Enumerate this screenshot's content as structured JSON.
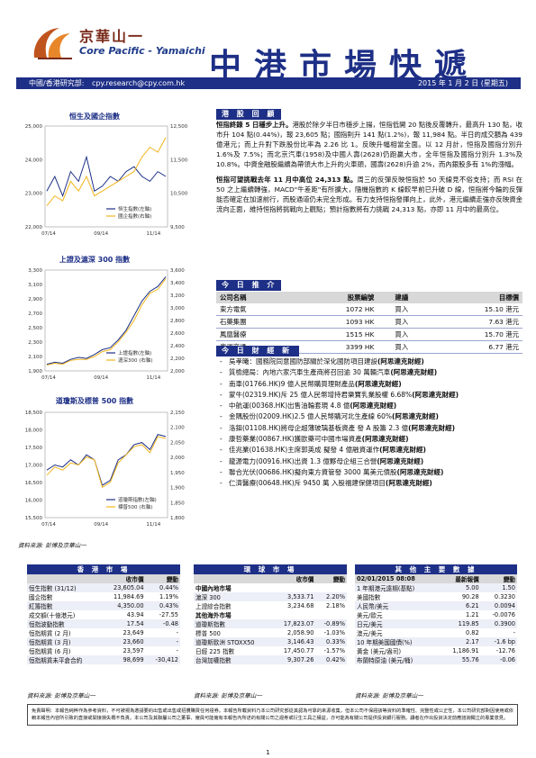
{
  "header": {
    "brand_cn": "京華山一",
    "brand_en": "Core Pacific - Yamaichi",
    "title": "中港市場快遞",
    "dept": "中國/香港研究部:",
    "email": "cpy.research@cpy.com.hk",
    "date": "2015 年 1 月 2 日 (星期五)"
  },
  "charts": [
    {
      "title": "恒生及國企指數",
      "left_ticks": [
        "25,000",
        "24,000",
        "23,000",
        "22,000"
      ],
      "right_ticks": [
        "12,500",
        "11,500",
        "10,500",
        "9,500"
      ],
      "x_ticks": [
        "07/14",
        "09/14",
        "11/14"
      ],
      "legend": [
        "恒生指數(左軸)",
        "國企指數(右軸)"
      ],
      "series_colors": [
        "#1d2f86",
        "#f2b51b"
      ]
    },
    {
      "title": "上證及滬深 300 指數",
      "left_ticks": [
        "3,300",
        "3,100",
        "2,900",
        "2,700",
        "2,500",
        "2,300",
        "2,100",
        "1,900"
      ],
      "right_ticks": [
        "3,600",
        "3,400",
        "3,200",
        "3,000",
        "2,800",
        "2,600",
        "2,400",
        "2,200",
        "2,000"
      ],
      "x_ticks": [
        "07/14",
        "09/14",
        "11/14"
      ],
      "legend": [
        "上證指數(左軸)",
        "滬深300 (右軸)"
      ],
      "series_colors": [
        "#1d2f86",
        "#f2b51b"
      ]
    },
    {
      "title": "道瓊斯及標普 500 指數",
      "left_ticks": [
        "18,500",
        "18,000",
        "17,500",
        "17,000",
        "16,500",
        "16,000",
        "15,500"
      ],
      "right_ticks": [
        "2,150",
        "2,100",
        "2,050",
        "2,000",
        "1,950",
        "1,900",
        "1,850",
        "1,800"
      ],
      "x_ticks": [
        "07/14",
        "09/14",
        "11/14"
      ],
      "legend": [
        "道瓊斯指數(左軸)",
        "標普500 (右軸)"
      ],
      "series_colors": [
        "#1d2f86",
        "#f2b51b"
      ]
    }
  ],
  "chart_source": "資料來源: 彭博及京華山一",
  "news": {
    "heading": "港 股 回 顧",
    "p1_bold": "恒指終錄 5 日穩步上升。",
    "p1_text": "港股於除夕半日市穩步上揚，恒指低開 20 點後反覆轉升，最高升 130 點，收市升 104 點(0.44%)，報 23,605 點；國指則升 141 點(1.2%)，報 11,984 點。半日的成交額為 439 億港元；而上升對下跌股份比率為 2.26 比 1。反映升幅相當全面。以 12 月計，恒指及國指分別升 1.6%及 7.5%；而北京汽車(1958)及中國人壽(2628)仍跑贏大市，全年恒指及國指分別升 1.3%及 10.8%。中資金融股繼續為帶領大市上升的火車頭，國壽(2628)升逾 2%，而內銀股多有 1%的漲幅。",
    "p2_bold": "恒指可望挑戰去年 11 月中高位 24,313 點。",
    "p2_text": "周三的反彈反映恒指於 50 天線見不俗支持；而 RSI 在 50 之上繼續轉強，MACD\"牛差距\"有所擴大，隨機指數的 K 線較早前已升破 D 線，恒指將今輪的反彈能否確定在加速前行，而股通道仍未完全形成。有力支持恒指發揮向上，此外，港元繼續走強亦反映資金流向正面，維持恒指將挑戰向上觀點；預計指數將有力挑戰 24,313 點，亦即 11 月中的最高位。"
  },
  "recommend": {
    "heading": "今 日 推 介",
    "columns": [
      "公司名稱",
      "股票編號",
      "建議",
      "目標價"
    ],
    "rows": [
      [
        "東方電氣",
        "1072 HK",
        "買入",
        "15.10 港元"
      ],
      [
        "石藥集團",
        "1093 HK",
        "買入",
        "7.63 港元"
      ],
      [
        "鳳凰醫療",
        "1515 HK",
        "買入",
        "15.70 港元"
      ],
      [
        "粵運交通",
        "3399 HK",
        "買入",
        "6.77 港元"
      ]
    ]
  },
  "finance": {
    "heading": "今 日 財 經 新 聞",
    "items": [
      {
        "text": "吳孝曦：國務院同意國防部關於深化國防項目建設",
        "tag": "(阿思達克財經)"
      },
      {
        "text": "質檢總局：內地六家汽車生產商將召回逾 30 萬輛汽車",
        "tag": "(阿思達克財經)"
      },
      {
        "text": "南車(01766.HK)9 億人民幣購買理財產品",
        "tag": "(阿思達克財經)"
      },
      {
        "text": "蒙牛(02319.HK)斥 25 億人民幣增持君樂寶乳業股權 6.68%",
        "tag": "(阿思達克財經)"
      },
      {
        "text": "中航運(00368.HK)出售油輪套現 4.8 億",
        "tag": "(阿思達克財經)"
      },
      {
        "text": "金隅股份(02009.HK)2.5 億人民幣購河北生產線 60%",
        "tag": "(阿思達克財經)"
      },
      {
        "text": "洛鉬(01108.HK)將母企超薄玻璃基板資產 發 A 股籌 2.3 億",
        "tag": "(阿思達克財經)"
      },
      {
        "text": "康哲藥業(00867.HK)獲歐藥可中國市場資產",
        "tag": "(阿思達克財經)"
      },
      {
        "text": "佳兆業(01638.HK)主席郭英成 擬發 4 億融資運作",
        "tag": "(阿思達克財經)"
      },
      {
        "text": "龍源電力(00916.HK)出資 1.3 億夥母企組三合營",
        "tag": "(阿思達克財經)"
      },
      {
        "text": "聯合光伏(00686.HK)擬向東方資管發 3000 萬美元債股",
        "tag": "(阿思達克財經)"
      },
      {
        "text": "仁濟醫療(00648.HK)斥 9450 萬 入股福建保健項目",
        "tag": "(阿思達克財經)"
      }
    ]
  },
  "hk_table": {
    "caption": "香 港 市 場",
    "columns": [
      "",
      "收市價",
      "變動"
    ],
    "rows": [
      [
        "恒生指數 (31/12)",
        "23,605.04",
        "0.44%"
      ],
      [
        "國企指數",
        "11,984.69",
        "1.19%"
      ],
      [
        "紅籌指數",
        "4,350.00",
        "0.43%"
      ],
      [
        "成交額(十億港元)",
        "43.94",
        "-27.55"
      ],
      [
        "恒指波動指數",
        "17.54",
        "-0.48"
      ],
      [
        "恒指期貨 (2 月)",
        "23,649",
        "-"
      ],
      [
        "恒指期貨 (3 月)",
        "23,660",
        "-"
      ],
      [
        "恒指期貨 (6 月)",
        "23,597",
        "-"
      ],
      [
        "恒指期貨未平倉合約",
        "98,699",
        "-30,412"
      ]
    ]
  },
  "world_table": {
    "caption": "環 球 市 場",
    "columns": [
      "",
      "收市價",
      "變動"
    ],
    "section_china": "中國內地市場",
    "china_rows": [
      [
        "滬深 300",
        "3,533.71",
        "2.20%"
      ],
      [
        "上證綜合指數",
        "3,234.68",
        "2.18%"
      ]
    ],
    "section_intl": "其他海外市場",
    "intl_rows": [
      [
        "道瓊斯指數",
        "17,823.07",
        "-0.89%"
      ],
      [
        "標普 500",
        "2,058.90",
        "-1.03%"
      ],
      [
        "道瓊斯歐洲 STOXX50",
        "3,146.43",
        "0.33%"
      ],
      [
        "日經 225 指數",
        "17,450.77",
        "-1.57%"
      ],
      [
        "台灣加權指數",
        "9,307.26",
        "0.42%"
      ]
    ]
  },
  "other_table": {
    "caption": "其 他 主 要 數 據",
    "columns": [
      "02/01/2015 08:08",
      "最新報價",
      "變動"
    ],
    "rows": [
      [
        "1 年期港元遠期(基點)",
        "5.00",
        "1.50"
      ],
      [
        "美國指數",
        "90.28",
        "0.3230"
      ],
      [
        "人民幣/美元",
        "6.21",
        "0.0094"
      ],
      [
        "美元/歐元",
        "1.21",
        "-0.0076"
      ],
      [
        "日元/美元",
        "119.85",
        "0.3900"
      ],
      [
        "澳元/美元",
        "0.82",
        "-"
      ],
      [
        "10 年期美國國債(%)",
        "2.17",
        "-1.6 bp"
      ],
      [
        "黃金 (美元/盎司)",
        "1,186.91",
        "-12.76"
      ],
      [
        "布蘭特原油 (美元/桶)",
        "55.76",
        "-0.06"
      ]
    ]
  },
  "table_source": "資料來源: 彭博及京華山一",
  "disclaimer": "免責聲明：本報告純粹作為參考資料，不可被視為邀請要約出售或出售或招攬購買任何證券。本報告所載資料乃本公司研究部從其認為可靠的來源收集，但本公司不保證該等資料的準確性、完整性或公正性，本公司研究部對因使用或依賴本報告內容所引致的直接或間接損失概不負責。本公司及其聯屬公司之董事、僱員可能擁有本報告內所述的有關公司之證券或衍生工具之權益，亦可能為有關公司提供投資銀行服務。讀者在作出投資決定前應諮詢獨立的專業意見。",
  "page_number": "1"
}
